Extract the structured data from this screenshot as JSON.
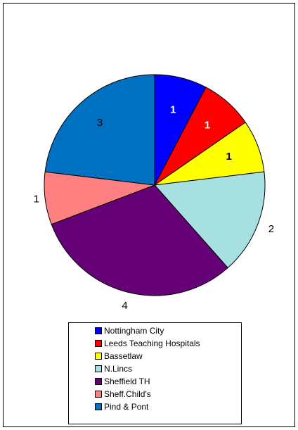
{
  "chart_data": {
    "type": "pie",
    "categories": [
      "Nottingham City",
      "Leeds Teaching Hospitals",
      "Bassetlaw",
      "N.Lincs",
      "Sheffield TH",
      "Sheff.Child's",
      "Pind & Pont"
    ],
    "values": [
      1,
      1,
      1,
      2,
      4,
      1,
      3
    ],
    "colors": [
      "#0000ff",
      "#ff0000",
      "#ffff00",
      "#a6e0e0",
      "#660077",
      "#ff8080",
      "#0070c0"
    ],
    "legend": "bottom"
  }
}
